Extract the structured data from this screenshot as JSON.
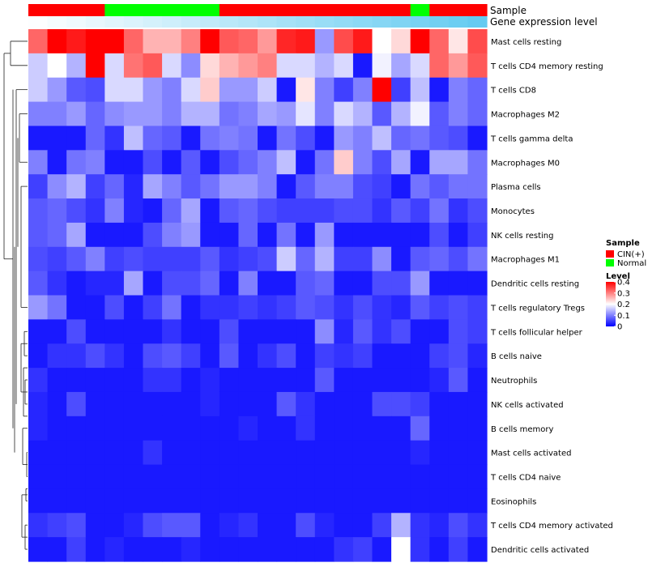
{
  "chart_data": {
    "type": "heatmap",
    "title": "",
    "annotations": {
      "sample_label": "Sample",
      "expression_label": "Gene expression level",
      "sample_groups": [
        "CIN(+)",
        "CIN(+)",
        "CIN(+)",
        "CIN(+)",
        "Normal",
        "Normal",
        "Normal",
        "Normal",
        "Normal",
        "Normal",
        "CIN(+)",
        "CIN(+)",
        "CIN(+)",
        "CIN(+)",
        "CIN(+)",
        "CIN(+)",
        "CIN(+)",
        "CIN(+)",
        "CIN(+)",
        "CIN(+)",
        "Normal",
        "CIN(+)",
        "CIN(+)",
        "CIN(+)"
      ],
      "expression_levels": [
        0.02,
        0.06,
        0.1,
        0.14,
        0.18,
        0.22,
        0.26,
        0.3,
        0.34,
        0.38,
        0.42,
        0.46,
        0.5,
        0.54,
        0.58,
        0.62,
        0.66,
        0.7,
        0.74,
        0.78,
        0.82,
        0.86,
        0.9,
        0.94
      ]
    },
    "rows": [
      "Mast cells resting",
      "T cells CD4 memory resting",
      "T cells CD8",
      "Macrophages M2",
      "T cells gamma delta",
      "Macrophages M0",
      "Plasma cells",
      "Monocytes",
      "NK cells resting",
      "Macrophages M1",
      "Dendritic cells resting",
      "T cells regulatory  Tregs",
      "T cells follicular helper",
      "B cells naive",
      "Neutrophils",
      "NK cells activated",
      "B cells memory",
      "Mast cells activated",
      "T cells CD4 naive",
      "Eosinophils",
      "T cells CD4 memory activated",
      "Dendritic cells activated"
    ],
    "values": [
      [
        0.32,
        0.4,
        0.38,
        0.4,
        0.4,
        0.32,
        0.26,
        0.26,
        0.3,
        0.4,
        0.33,
        0.32,
        0.28,
        0.37,
        0.38,
        0.12,
        0.34,
        0.38,
        0.2,
        0.23,
        0.4,
        0.32,
        0.22,
        0.34
      ],
      [
        0.16,
        0.2,
        0.14,
        0.4,
        0.17,
        0.31,
        0.33,
        0.17,
        0.11,
        0.23,
        0.26,
        0.28,
        0.3,
        0.17,
        0.17,
        0.14,
        0.17,
        0.02,
        0.19,
        0.13,
        0.17,
        0.32,
        0.28,
        0.33
      ],
      [
        0.16,
        0.12,
        0.07,
        0.06,
        0.17,
        0.17,
        0.12,
        0.1,
        0.17,
        0.24,
        0.12,
        0.12,
        0.16,
        0.02,
        0.22,
        0.1,
        0.05,
        0.1,
        0.41,
        0.05,
        0.15,
        0.02,
        0.1,
        0.08
      ],
      [
        0.1,
        0.1,
        0.12,
        0.08,
        0.11,
        0.12,
        0.12,
        0.1,
        0.14,
        0.14,
        0.09,
        0.1,
        0.13,
        0.12,
        0.18,
        0.1,
        0.17,
        0.14,
        0.07,
        0.14,
        0.19,
        0.07,
        0.1,
        0.08
      ],
      [
        0.02,
        0.02,
        0.02,
        0.08,
        0.04,
        0.15,
        0.08,
        0.07,
        0.02,
        0.09,
        0.1,
        0.09,
        0.02,
        0.09,
        0.06,
        0.02,
        0.12,
        0.1,
        0.15,
        0.08,
        0.09,
        0.07,
        0.06,
        0.02
      ],
      [
        0.1,
        0.02,
        0.09,
        0.1,
        0.02,
        0.02,
        0.06,
        0.02,
        0.07,
        0.02,
        0.06,
        0.08,
        0.1,
        0.15,
        0.02,
        0.09,
        0.24,
        0.1,
        0.06,
        0.13,
        0.02,
        0.13,
        0.13,
        0.09
      ],
      [
        0.05,
        0.11,
        0.14,
        0.05,
        0.08,
        0.03,
        0.13,
        0.1,
        0.07,
        0.09,
        0.12,
        0.12,
        0.1,
        0.02,
        0.07,
        0.1,
        0.1,
        0.06,
        0.05,
        0.02,
        0.09,
        0.07,
        0.09,
        0.09
      ],
      [
        0.07,
        0.08,
        0.06,
        0.04,
        0.1,
        0.03,
        0.02,
        0.08,
        0.13,
        0.02,
        0.07,
        0.08,
        0.06,
        0.05,
        0.05,
        0.05,
        0.06,
        0.06,
        0.04,
        0.07,
        0.05,
        0.09,
        0.04,
        0.06
      ],
      [
        0.07,
        0.08,
        0.13,
        0.02,
        0.02,
        0.02,
        0.06,
        0.1,
        0.12,
        0.02,
        0.02,
        0.08,
        0.02,
        0.09,
        0.02,
        0.12,
        0.02,
        0.02,
        0.02,
        0.02,
        0.02,
        0.06,
        0.02,
        0.05
      ],
      [
        0.06,
        0.05,
        0.07,
        0.1,
        0.05,
        0.06,
        0.05,
        0.05,
        0.05,
        0.07,
        0.04,
        0.05,
        0.06,
        0.16,
        0.08,
        0.14,
        0.05,
        0.05,
        0.11,
        0.02,
        0.07,
        0.08,
        0.06,
        0.09
      ],
      [
        0.07,
        0.04,
        0.02,
        0.03,
        0.03,
        0.13,
        0.02,
        0.06,
        0.06,
        0.08,
        0.02,
        0.1,
        0.02,
        0.02,
        0.07,
        0.08,
        0.02,
        0.02,
        0.06,
        0.06,
        0.12,
        0.02,
        0.02,
        0.02
      ],
      [
        0.12,
        0.09,
        0.02,
        0.02,
        0.06,
        0.02,
        0.05,
        0.09,
        0.02,
        0.04,
        0.04,
        0.05,
        0.04,
        0.05,
        0.07,
        0.06,
        0.04,
        0.06,
        0.04,
        0.03,
        0.07,
        0.05,
        0.06,
        0.05
      ],
      [
        0.02,
        0.02,
        0.06,
        0.02,
        0.02,
        0.02,
        0.02,
        0.04,
        0.02,
        0.02,
        0.06,
        0.02,
        0.02,
        0.02,
        0.02,
        0.11,
        0.03,
        0.07,
        0.04,
        0.06,
        0.02,
        0.02,
        0.06,
        0.05
      ],
      [
        0.02,
        0.04,
        0.04,
        0.06,
        0.04,
        0.02,
        0.06,
        0.07,
        0.05,
        0.02,
        0.07,
        0.02,
        0.04,
        0.06,
        0.02,
        0.05,
        0.04,
        0.05,
        0.02,
        0.02,
        0.02,
        0.05,
        0.06,
        0.03
      ],
      [
        0.04,
        0.02,
        0.02,
        0.02,
        0.02,
        0.02,
        0.04,
        0.04,
        0.02,
        0.03,
        0.02,
        0.02,
        0.02,
        0.02,
        0.02,
        0.07,
        0.02,
        0.02,
        0.02,
        0.02,
        0.02,
        0.03,
        0.07,
        0.02
      ],
      [
        0.03,
        0.02,
        0.06,
        0.02,
        0.02,
        0.02,
        0.02,
        0.02,
        0.02,
        0.03,
        0.02,
        0.02,
        0.02,
        0.07,
        0.04,
        0.02,
        0.02,
        0.02,
        0.06,
        0.06,
        0.05,
        0.02,
        0.02,
        0.02
      ],
      [
        0.03,
        0.02,
        0.02,
        0.02,
        0.02,
        0.02,
        0.02,
        0.02,
        0.02,
        0.02,
        0.02,
        0.03,
        0.02,
        0.02,
        0.04,
        0.02,
        0.02,
        0.02,
        0.02,
        0.02,
        0.08,
        0.02,
        0.02,
        0.02
      ],
      [
        0.02,
        0.02,
        0.02,
        0.02,
        0.02,
        0.02,
        0.04,
        0.02,
        0.02,
        0.02,
        0.02,
        0.02,
        0.02,
        0.02,
        0.02,
        0.02,
        0.02,
        0.02,
        0.02,
        0.02,
        0.03,
        0.02,
        0.02,
        0.02
      ],
      [
        0.02,
        0.02,
        0.02,
        0.02,
        0.02,
        0.02,
        0.02,
        0.02,
        0.02,
        0.02,
        0.02,
        0.02,
        0.02,
        0.02,
        0.02,
        0.02,
        0.02,
        0.02,
        0.02,
        0.02,
        0.02,
        0.02,
        0.02,
        0.02
      ],
      [
        0.02,
        0.02,
        0.02,
        0.02,
        0.02,
        0.02,
        0.02,
        0.02,
        0.02,
        0.02,
        0.02,
        0.02,
        0.02,
        0.02,
        0.02,
        0.02,
        0.02,
        0.02,
        0.02,
        0.02,
        0.02,
        0.02,
        0.02,
        0.02
      ],
      [
        0.04,
        0.05,
        0.06,
        0.02,
        0.02,
        0.03,
        0.06,
        0.07,
        0.07,
        0.02,
        0.03,
        0.04,
        0.02,
        0.02,
        0.06,
        0.03,
        0.02,
        0.02,
        0.05,
        0.14,
        0.04,
        0.03,
        0.06,
        0.04
      ],
      [
        0.02,
        0.02,
        0.05,
        0.02,
        0.03,
        0.02,
        0.02,
        0.02,
        0.03,
        0.02,
        0.02,
        0.02,
        0.02,
        0.02,
        0.02,
        0.02,
        0.04,
        0.05,
        0.02,
        0.2,
        0.04,
        0.02,
        0.05,
        0.02
      ]
    ],
    "color_scale": {
      "stops": [
        [
          0,
          "#0000ff"
        ],
        [
          0.2,
          "#ffffff"
        ],
        [
          0.4,
          "#ff0000"
        ]
      ],
      "vmin": 0,
      "vmax": 0.4
    },
    "legend": {
      "sample_title": "Sample",
      "sample_entries": [
        {
          "label": "CIN(+)",
          "color": "#ff0000"
        },
        {
          "label": "Normal",
          "color": "#00ff00"
        }
      ],
      "level_title": "Level",
      "level_ticks": [
        {
          "label": "0.4",
          "value": 0.4
        },
        {
          "label": "0.3",
          "value": 0.3
        },
        {
          "label": "0.2",
          "value": 0.2
        },
        {
          "label": "0.1",
          "value": 0.1
        },
        {
          "label": "0",
          "value": 0.0
        }
      ],
      "placement": "right"
    },
    "expression_gradient": [
      "#ffffff",
      "#5bc8f0"
    ],
    "row_dendrogram": true
  }
}
